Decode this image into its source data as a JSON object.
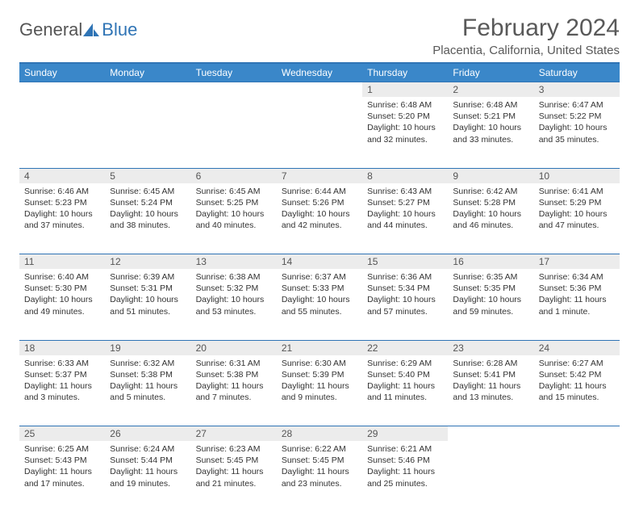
{
  "brand": {
    "part1": "General",
    "part2": "Blue"
  },
  "title": "February 2024",
  "location": "Placentia, California, United States",
  "header_color": "#3a87c9",
  "accent_color": "#2f74b5",
  "daynum_bg": "#ececec",
  "text_color": "#333333",
  "weekdays": [
    "Sunday",
    "Monday",
    "Tuesday",
    "Wednesday",
    "Thursday",
    "Friday",
    "Saturday"
  ],
  "weeks": [
    [
      null,
      null,
      null,
      null,
      {
        "n": "1",
        "sr": "Sunrise: 6:48 AM",
        "ss": "Sunset: 5:20 PM",
        "dl": "Daylight: 10 hours and 32 minutes."
      },
      {
        "n": "2",
        "sr": "Sunrise: 6:48 AM",
        "ss": "Sunset: 5:21 PM",
        "dl": "Daylight: 10 hours and 33 minutes."
      },
      {
        "n": "3",
        "sr": "Sunrise: 6:47 AM",
        "ss": "Sunset: 5:22 PM",
        "dl": "Daylight: 10 hours and 35 minutes."
      }
    ],
    [
      {
        "n": "4",
        "sr": "Sunrise: 6:46 AM",
        "ss": "Sunset: 5:23 PM",
        "dl": "Daylight: 10 hours and 37 minutes."
      },
      {
        "n": "5",
        "sr": "Sunrise: 6:45 AM",
        "ss": "Sunset: 5:24 PM",
        "dl": "Daylight: 10 hours and 38 minutes."
      },
      {
        "n": "6",
        "sr": "Sunrise: 6:45 AM",
        "ss": "Sunset: 5:25 PM",
        "dl": "Daylight: 10 hours and 40 minutes."
      },
      {
        "n": "7",
        "sr": "Sunrise: 6:44 AM",
        "ss": "Sunset: 5:26 PM",
        "dl": "Daylight: 10 hours and 42 minutes."
      },
      {
        "n": "8",
        "sr": "Sunrise: 6:43 AM",
        "ss": "Sunset: 5:27 PM",
        "dl": "Daylight: 10 hours and 44 minutes."
      },
      {
        "n": "9",
        "sr": "Sunrise: 6:42 AM",
        "ss": "Sunset: 5:28 PM",
        "dl": "Daylight: 10 hours and 46 minutes."
      },
      {
        "n": "10",
        "sr": "Sunrise: 6:41 AM",
        "ss": "Sunset: 5:29 PM",
        "dl": "Daylight: 10 hours and 47 minutes."
      }
    ],
    [
      {
        "n": "11",
        "sr": "Sunrise: 6:40 AM",
        "ss": "Sunset: 5:30 PM",
        "dl": "Daylight: 10 hours and 49 minutes."
      },
      {
        "n": "12",
        "sr": "Sunrise: 6:39 AM",
        "ss": "Sunset: 5:31 PM",
        "dl": "Daylight: 10 hours and 51 minutes."
      },
      {
        "n": "13",
        "sr": "Sunrise: 6:38 AM",
        "ss": "Sunset: 5:32 PM",
        "dl": "Daylight: 10 hours and 53 minutes."
      },
      {
        "n": "14",
        "sr": "Sunrise: 6:37 AM",
        "ss": "Sunset: 5:33 PM",
        "dl": "Daylight: 10 hours and 55 minutes."
      },
      {
        "n": "15",
        "sr": "Sunrise: 6:36 AM",
        "ss": "Sunset: 5:34 PM",
        "dl": "Daylight: 10 hours and 57 minutes."
      },
      {
        "n": "16",
        "sr": "Sunrise: 6:35 AM",
        "ss": "Sunset: 5:35 PM",
        "dl": "Daylight: 10 hours and 59 minutes."
      },
      {
        "n": "17",
        "sr": "Sunrise: 6:34 AM",
        "ss": "Sunset: 5:36 PM",
        "dl": "Daylight: 11 hours and 1 minute."
      }
    ],
    [
      {
        "n": "18",
        "sr": "Sunrise: 6:33 AM",
        "ss": "Sunset: 5:37 PM",
        "dl": "Daylight: 11 hours and 3 minutes."
      },
      {
        "n": "19",
        "sr": "Sunrise: 6:32 AM",
        "ss": "Sunset: 5:38 PM",
        "dl": "Daylight: 11 hours and 5 minutes."
      },
      {
        "n": "20",
        "sr": "Sunrise: 6:31 AM",
        "ss": "Sunset: 5:38 PM",
        "dl": "Daylight: 11 hours and 7 minutes."
      },
      {
        "n": "21",
        "sr": "Sunrise: 6:30 AM",
        "ss": "Sunset: 5:39 PM",
        "dl": "Daylight: 11 hours and 9 minutes."
      },
      {
        "n": "22",
        "sr": "Sunrise: 6:29 AM",
        "ss": "Sunset: 5:40 PM",
        "dl": "Daylight: 11 hours and 11 minutes."
      },
      {
        "n": "23",
        "sr": "Sunrise: 6:28 AM",
        "ss": "Sunset: 5:41 PM",
        "dl": "Daylight: 11 hours and 13 minutes."
      },
      {
        "n": "24",
        "sr": "Sunrise: 6:27 AM",
        "ss": "Sunset: 5:42 PM",
        "dl": "Daylight: 11 hours and 15 minutes."
      }
    ],
    [
      {
        "n": "25",
        "sr": "Sunrise: 6:25 AM",
        "ss": "Sunset: 5:43 PM",
        "dl": "Daylight: 11 hours and 17 minutes."
      },
      {
        "n": "26",
        "sr": "Sunrise: 6:24 AM",
        "ss": "Sunset: 5:44 PM",
        "dl": "Daylight: 11 hours and 19 minutes."
      },
      {
        "n": "27",
        "sr": "Sunrise: 6:23 AM",
        "ss": "Sunset: 5:45 PM",
        "dl": "Daylight: 11 hours and 21 minutes."
      },
      {
        "n": "28",
        "sr": "Sunrise: 6:22 AM",
        "ss": "Sunset: 5:45 PM",
        "dl": "Daylight: 11 hours and 23 minutes."
      },
      {
        "n": "29",
        "sr": "Sunrise: 6:21 AM",
        "ss": "Sunset: 5:46 PM",
        "dl": "Daylight: 11 hours and 25 minutes."
      },
      null,
      null
    ]
  ]
}
